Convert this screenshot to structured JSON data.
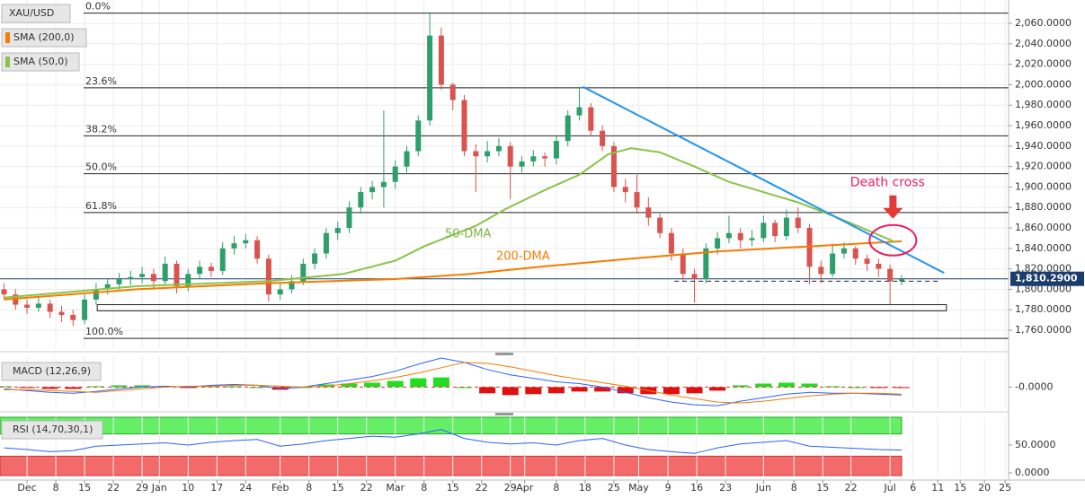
{
  "chart_data": {
    "type": "candlestick",
    "symbol": "XAU/USD",
    "up_color": "#2e9e6a",
    "down_color": "#d9534f",
    "x": [
      -4,
      -2,
      0,
      2,
      4,
      6,
      8,
      10,
      12,
      14,
      16,
      18,
      20,
      22,
      24,
      26,
      28,
      30,
      32,
      34,
      36,
      38,
      40,
      42,
      44,
      46,
      48,
      50,
      52,
      54,
      56,
      58,
      60,
      62,
      64,
      66,
      68,
      70,
      72,
      74,
      76,
      78,
      80,
      82,
      84,
      86,
      88,
      90,
      92,
      94,
      96,
      98,
      100,
      102,
      104,
      106,
      108,
      110,
      112,
      114,
      116,
      118,
      120,
      122,
      124,
      126,
      128,
      130,
      132,
      134,
      136,
      138,
      140,
      142,
      144,
      146,
      148,
      150,
      152
    ],
    "ohlc": [
      [
        1800,
        1806,
        1790,
        1795
      ],
      [
        1795,
        1800,
        1780,
        1785
      ],
      [
        1785,
        1790,
        1776,
        1782
      ],
      [
        1782,
        1792,
        1778,
        1786
      ],
      [
        1786,
        1790,
        1772,
        1778
      ],
      [
        1778,
        1784,
        1768,
        1775
      ],
      [
        1775,
        1780,
        1764,
        1770
      ],
      [
        1770,
        1795,
        1766,
        1790
      ],
      [
        1790,
        1806,
        1785,
        1800
      ],
      [
        1800,
        1811,
        1795,
        1805
      ],
      [
        1805,
        1816,
        1800,
        1810
      ],
      [
        1810,
        1818,
        1804,
        1812
      ],
      [
        1812,
        1822,
        1806,
        1815
      ],
      [
        1815,
        1820,
        1800,
        1808
      ],
      [
        1808,
        1832,
        1804,
        1825
      ],
      [
        1825,
        1828,
        1796,
        1803
      ],
      [
        1803,
        1820,
        1798,
        1815
      ],
      [
        1815,
        1828,
        1810,
        1822
      ],
      [
        1822,
        1826,
        1812,
        1818
      ],
      [
        1818,
        1846,
        1814,
        1840
      ],
      [
        1840,
        1852,
        1834,
        1845
      ],
      [
        1845,
        1854,
        1840,
        1848
      ],
      [
        1848,
        1852,
        1825,
        1830
      ],
      [
        1830,
        1834,
        1788,
        1795
      ],
      [
        1795,
        1806,
        1790,
        1800
      ],
      [
        1800,
        1814,
        1796,
        1808
      ],
      [
        1808,
        1830,
        1804,
        1825
      ],
      [
        1825,
        1840,
        1820,
        1835
      ],
      [
        1835,
        1860,
        1830,
        1855
      ],
      [
        1855,
        1866,
        1848,
        1860
      ],
      [
        1860,
        1886,
        1855,
        1880
      ],
      [
        1880,
        1900,
        1874,
        1895
      ],
      [
        1895,
        1906,
        1888,
        1900
      ],
      [
        1900,
        1975,
        1880,
        1905
      ],
      [
        1905,
        1926,
        1898,
        1920
      ],
      [
        1920,
        1940,
        1914,
        1935
      ],
      [
        1935,
        1970,
        1930,
        1965
      ],
      [
        1965,
        2070,
        1960,
        2048
      ],
      [
        2048,
        2056,
        1995,
        2000
      ],
      [
        2000,
        2002,
        1975,
        1985
      ],
      [
        1985,
        1990,
        1930,
        1935
      ],
      [
        1935,
        1942,
        1895,
        1930
      ],
      [
        1930,
        1945,
        1924,
        1935
      ],
      [
        1935,
        1948,
        1930,
        1940
      ],
      [
        1940,
        1944,
        1888,
        1920
      ],
      [
        1920,
        1930,
        1914,
        1925
      ],
      [
        1925,
        1936,
        1920,
        1930
      ],
      [
        1930,
        1934,
        1920,
        1928
      ],
      [
        1928,
        1950,
        1922,
        1945
      ],
      [
        1945,
        1975,
        1940,
        1970
      ],
      [
        1970,
        1998,
        1965,
        1978
      ],
      [
        1978,
        1982,
        1950,
        1955
      ],
      [
        1955,
        1960,
        1935,
        1940
      ],
      [
        1940,
        1944,
        1895,
        1900
      ],
      [
        1900,
        1908,
        1885,
        1895
      ],
      [
        1895,
        1912,
        1874,
        1880
      ],
      [
        1880,
        1890,
        1862,
        1870
      ],
      [
        1870,
        1874,
        1850,
        1855
      ],
      [
        1855,
        1860,
        1828,
        1835
      ],
      [
        1835,
        1840,
        1808,
        1815
      ],
      [
        1815,
        1820,
        1787,
        1810
      ],
      [
        1810,
        1845,
        1806,
        1840
      ],
      [
        1840,
        1856,
        1834,
        1850
      ],
      [
        1850,
        1872,
        1845,
        1855
      ],
      [
        1855,
        1860,
        1840,
        1848
      ],
      [
        1848,
        1858,
        1842,
        1850
      ],
      [
        1850,
        1872,
        1846,
        1865
      ],
      [
        1865,
        1868,
        1846,
        1852
      ],
      [
        1852,
        1878,
        1848,
        1870
      ],
      [
        1870,
        1880,
        1855,
        1860
      ],
      [
        1860,
        1864,
        1805,
        1822
      ],
      [
        1822,
        1828,
        1806,
        1815
      ],
      [
        1815,
        1845,
        1812,
        1835
      ],
      [
        1835,
        1846,
        1830,
        1840
      ],
      [
        1840,
        1842,
        1824,
        1830
      ],
      [
        1830,
        1834,
        1818,
        1825
      ],
      [
        1825,
        1830,
        1812,
        1820
      ],
      [
        1820,
        1824,
        1785,
        1808
      ],
      [
        1808,
        1814,
        1804,
        1810
      ]
    ],
    "series": [
      {
        "name": "SMA (200,0)",
        "color": "#f57c00",
        "x": [
          -4,
          19,
          42,
          64,
          77,
          89,
          105,
          120,
          136,
          152
        ],
        "values": [
          1790,
          1800,
          1806,
          1810,
          1815,
          1822,
          1830,
          1837,
          1842,
          1847
        ]
      },
      {
        "name": "SMA (50,0)",
        "color": "#8bc34a",
        "x": [
          -4,
          19,
          42,
          55,
          64,
          69,
          78,
          83,
          90,
          96,
          101,
          105,
          110,
          116,
          122,
          128,
          134,
          140,
          146,
          151
        ],
        "values": [
          1792,
          1803,
          1808,
          1815,
          1828,
          1842,
          1862,
          1878,
          1897,
          1912,
          1932,
          1938,
          1934,
          1920,
          1905,
          1895,
          1885,
          1872,
          1858,
          1846
        ]
      }
    ],
    "xlim": [
      -4.7,
      170.6
    ],
    "xticks": [
      {
        "value": 0,
        "label": "Dec"
      },
      {
        "value": 5,
        "label": "8"
      },
      {
        "value": 10,
        "label": "15"
      },
      {
        "value": 15,
        "label": "22"
      },
      {
        "value": 20,
        "label": "29"
      },
      {
        "value": 23,
        "label": "Jan"
      },
      {
        "value": 28,
        "label": "10"
      },
      {
        "value": 33,
        "label": "17"
      },
      {
        "value": 38,
        "label": "24"
      },
      {
        "value": 44,
        "label": "Feb"
      },
      {
        "value": 49,
        "label": "8"
      },
      {
        "value": 54,
        "label": "15"
      },
      {
        "value": 59,
        "label": "22"
      },
      {
        "value": 64,
        "label": "Mar"
      },
      {
        "value": 69,
        "label": "8"
      },
      {
        "value": 74,
        "label": "15"
      },
      {
        "value": 79,
        "label": "22"
      },
      {
        "value": 84,
        "label": "29"
      },
      {
        "value": 86.5,
        "label": "Apr"
      },
      {
        "value": 92,
        "label": "8"
      },
      {
        "value": 97,
        "label": "18"
      },
      {
        "value": 102,
        "label": "25"
      },
      {
        "value": 106.3,
        "label": "May"
      },
      {
        "value": 111.4,
        "label": "9"
      },
      {
        "value": 116.4,
        "label": "16"
      },
      {
        "value": 121.4,
        "label": "23"
      },
      {
        "value": 128,
        "label": "Jun"
      },
      {
        "value": 133.3,
        "label": "8"
      },
      {
        "value": 138.3,
        "label": "15"
      },
      {
        "value": 143.2,
        "label": "22"
      },
      {
        "value": 150,
        "label": "Jul"
      },
      {
        "value": 154,
        "label": "6"
      },
      {
        "value": 158.3,
        "label": "11"
      },
      {
        "value": 162.2,
        "label": "15"
      },
      {
        "value": 166.4,
        "label": "20"
      },
      {
        "value": 170,
        "label": "25"
      }
    ],
    "ylim": [
      1742.5,
      2082.8
    ],
    "yticks": [
      {
        "value": 1760,
        "label": "1,760.0000"
      },
      {
        "value": 1780,
        "label": "1,780.0000"
      },
      {
        "value": 1800,
        "label": "1,800.0000"
      },
      {
        "value": 1820,
        "label": "1,820.0000"
      },
      {
        "value": 1840,
        "label": "1,840.0000"
      },
      {
        "value": 1860,
        "label": "1,860.0000"
      },
      {
        "value": 1880,
        "label": "1,880.0000"
      },
      {
        "value": 1900,
        "label": "1,900.0000"
      },
      {
        "value": 1920,
        "label": "1,920.0000"
      },
      {
        "value": 1940,
        "label": "1,940.0000"
      },
      {
        "value": 1960,
        "label": "1,960.0000"
      },
      {
        "value": 1980,
        "label": "1,980.0000"
      },
      {
        "value": 2000,
        "label": "2,000.0000"
      },
      {
        "value": 2020,
        "label": "2,020.0000"
      },
      {
        "value": 2040,
        "label": "2,040.0000"
      },
      {
        "value": 2060,
        "label": "2,060.0000"
      }
    ],
    "grid": true,
    "fib_levels": [
      {
        "label": "0.0%",
        "value": 2070
      },
      {
        "label": "23.6%",
        "value": 1997
      },
      {
        "label": "38.2%",
        "value": 1950
      },
      {
        "label": "50.0%",
        "value": 1913
      },
      {
        "label": "61.8%",
        "value": 1875
      },
      {
        "label": "100.0%",
        "value": 1752
      }
    ],
    "trendline": {
      "color": "#2196f3",
      "x": [
        96.6,
        159.4
      ],
      "values": [
        1998,
        1816
      ]
    },
    "support": {
      "x": [
        112.5,
        158.3
      ],
      "value": 1808
    },
    "zone": {
      "x": [
        12.2,
        159.8
      ],
      "values": [
        1779,
        1785
      ]
    },
    "last_price": {
      "value": 1810.29,
      "label": "1,810.2900"
    },
    "death_cross": {
      "text": "Death cross",
      "x": 150.5,
      "value": 1848,
      "color": "#e91e63"
    },
    "labels": {
      "sma50": "50-DMA",
      "sma200": "200-DMA"
    },
    "indicators": {
      "x": [
        -4,
        0,
        4,
        8,
        12,
        16,
        20,
        24,
        28,
        32,
        36,
        40,
        44,
        48,
        52,
        56,
        60,
        64,
        68,
        72,
        76,
        80,
        84,
        88,
        92,
        96,
        100,
        104,
        108,
        112,
        116,
        120,
        124,
        128,
        132,
        136,
        140,
        144,
        148,
        152
      ],
      "macd": {
        "name": "MACD (12,26,9)",
        "ylim": [
          -24,
          34
        ],
        "yticks": [
          {
            "value": 0,
            "label": "-0.0000"
          }
        ],
        "macd_color": "#2962ff",
        "signal_color": "#f57c00",
        "macd": [
          -2,
          -4,
          -6,
          -7,
          -5,
          -2,
          0,
          1,
          0,
          2,
          3,
          2,
          -2,
          0,
          4,
          8,
          12,
          18,
          26,
          33,
          28,
          20,
          14,
          10,
          6,
          4,
          0,
          -6,
          -12,
          -17,
          -20,
          -21,
          -16,
          -12,
          -8,
          -6,
          -7,
          -7,
          -8,
          -9
        ],
        "signal": [
          -3,
          -3,
          -4,
          -5,
          -6,
          -4,
          -2,
          0,
          1,
          1,
          2,
          2,
          1,
          0,
          1,
          4,
          7,
          11,
          16,
          22,
          28,
          27,
          23,
          18,
          13,
          9,
          5,
          1,
          -4,
          -9,
          -13,
          -17,
          -18,
          -16,
          -13,
          -10,
          -8,
          -7,
          -7,
          -8
        ],
        "histogram": [
          1,
          -1,
          -2,
          -2,
          1,
          2,
          2,
          1,
          -1,
          1,
          1,
          0,
          -3,
          0,
          3,
          4,
          5,
          7,
          10,
          11,
          0,
          -7,
          -9,
          -8,
          -7,
          -5,
          -5,
          -7,
          -8,
          -8,
          -7,
          -4,
          2,
          4,
          5,
          4,
          1,
          0,
          -1,
          -1
        ]
      },
      "rsi": {
        "name": "RSI (14,70,30,1)",
        "color": "#2962ff",
        "ylim": [
          0,
          100
        ],
        "yticks": [
          {
            "value": 50,
            "label": "50.0000"
          },
          {
            "value": 0,
            "label": "0.0000"
          }
        ],
        "bands": [
          30,
          70
        ],
        "values": [
          45,
          42,
          38,
          40,
          48,
          50,
          52,
          54,
          50,
          55,
          58,
          60,
          48,
          52,
          58,
          62,
          66,
          64,
          70,
          78,
          62,
          55,
          52,
          54,
          50,
          58,
          62,
          50,
          42,
          38,
          35,
          45,
          52,
          55,
          58,
          48,
          46,
          44,
          42,
          41
        ]
      }
    }
  }
}
